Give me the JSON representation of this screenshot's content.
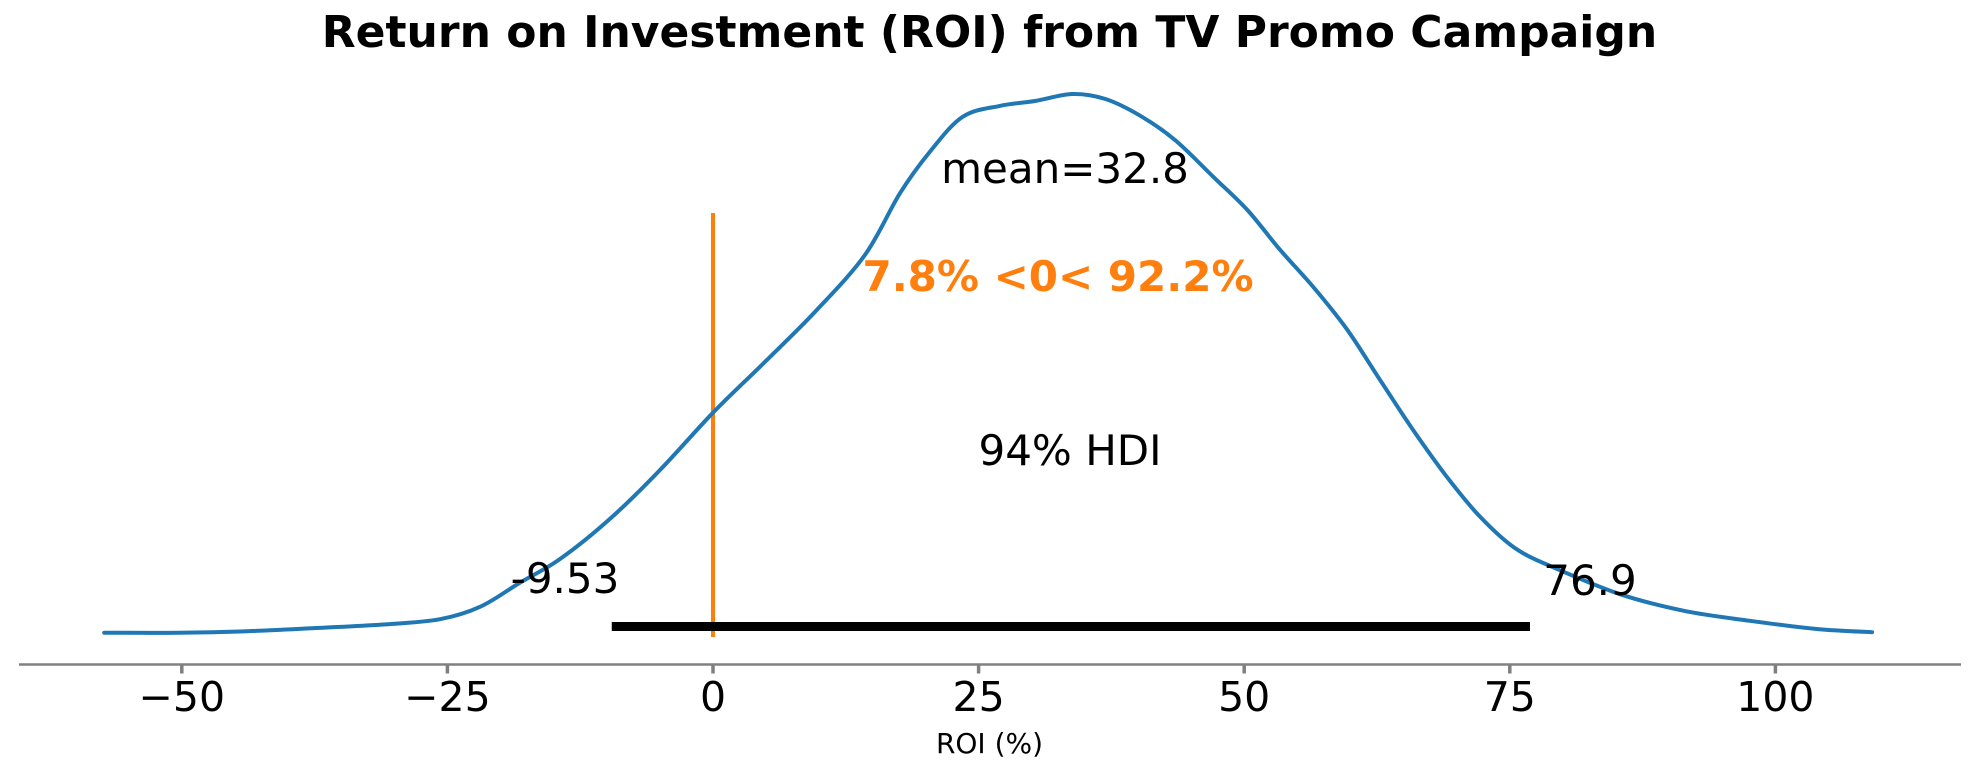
{
  "chart_data": {
    "type": "line",
    "subtype": "posterior-kde",
    "title": "Return on Investment (ROI) from TV Promo Campaign",
    "xlabel": "ROI (%)",
    "xlim": [
      -57.3,
      109.1
    ],
    "grid": false,
    "colors": {
      "curve": "#1f77b4",
      "reference_line": "#ff7f0e",
      "hdi_bar": "#000000",
      "axis_spine": "#808080",
      "tick_mark": "#7f7f7f",
      "text": "#000000"
    },
    "x_ticks": [
      {
        "value": -50,
        "label": "−50"
      },
      {
        "value": -25,
        "label": "−25"
      },
      {
        "value": 0,
        "label": "0"
      },
      {
        "value": 25,
        "label": "25"
      },
      {
        "value": 50,
        "label": "50"
      },
      {
        "value": 75,
        "label": "75"
      },
      {
        "value": 100,
        "label": "100"
      }
    ],
    "curve": {
      "name": "posterior density (normalized, peak = 1)",
      "points": [
        [
          -57.3,
          0.006
        ],
        [
          -50.2,
          0.006
        ],
        [
          -43.6,
          0.009
        ],
        [
          -37.0,
          0.015
        ],
        [
          -30.4,
          0.022
        ],
        [
          -25.7,
          0.031
        ],
        [
          -21.9,
          0.054
        ],
        [
          -18.2,
          0.098
        ],
        [
          -14.4,
          0.142
        ],
        [
          -9.7,
          0.216
        ],
        [
          -5.0,
          0.306
        ],
        [
          0.0,
          0.412
        ],
        [
          4.9,
          0.506
        ],
        [
          9.6,
          0.598
        ],
        [
          14.3,
          0.703
        ],
        [
          17.6,
          0.817
        ],
        [
          20.4,
          0.893
        ],
        [
          23.5,
          0.958
        ],
        [
          27.0,
          0.978
        ],
        [
          30.3,
          0.987
        ],
        [
          33.8,
          1.0
        ],
        [
          36.9,
          0.991
        ],
        [
          40.2,
          0.96
        ],
        [
          43.5,
          0.915
        ],
        [
          47.1,
          0.847
        ],
        [
          50.3,
          0.786
        ],
        [
          53.4,
          0.712
        ],
        [
          56.5,
          0.644
        ],
        [
          59.7,
          0.565
        ],
        [
          62.8,
          0.472
        ],
        [
          65.9,
          0.38
        ],
        [
          69.1,
          0.293
        ],
        [
          72.2,
          0.22
        ],
        [
          75.5,
          0.162
        ],
        [
          79.3,
          0.125
        ],
        [
          85.4,
          0.077
        ],
        [
          91.5,
          0.046
        ],
        [
          97.6,
          0.028
        ],
        [
          103.9,
          0.013
        ],
        [
          109.1,
          0.007
        ]
      ]
    },
    "mean": {
      "value": 32.8,
      "label": "mean=32.8"
    },
    "hdi": {
      "probability": "94%",
      "label": "94% HDI",
      "lower": -9.53,
      "upper": 76.9,
      "lower_label": "-9.53",
      "upper_label": "76.9"
    },
    "ref_val": {
      "value": 0,
      "below_pct": "7.8%",
      "above_pct": "92.2%",
      "label": "7.8% <0< 92.2%"
    }
  }
}
